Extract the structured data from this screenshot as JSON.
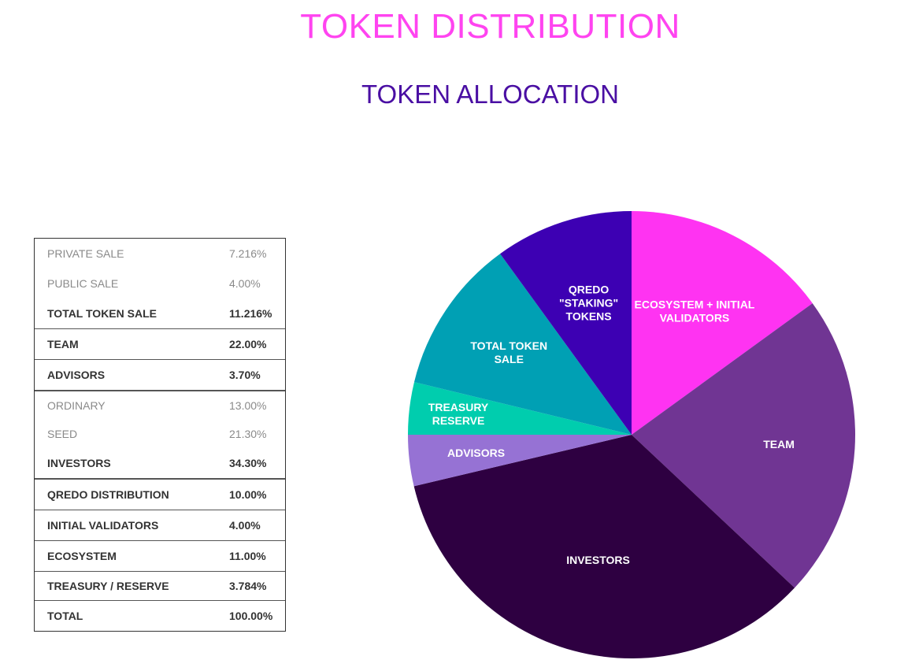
{
  "title": "TOKEN DISTRIBUTION",
  "subtitle": "TOKEN ALLOCATION",
  "colors": {
    "title": "#ff44f0",
    "subtitle": "#4a0fa3"
  },
  "table": {
    "rows": [
      {
        "label": "PRIVATE SALE",
        "value": "7.216%"
      },
      {
        "label": "PUBLIC SALE",
        "value": "4.00%"
      },
      {
        "label": "TOTAL TOKEN SALE",
        "value": "11.216%"
      },
      {
        "label": "TEAM",
        "value": "22.00%"
      },
      {
        "label": "ADVISORS",
        "value": "3.70%"
      },
      {
        "label": "ORDINARY",
        "value": "13.00%"
      },
      {
        "label": "SEED",
        "value": "21.30%"
      },
      {
        "label": "INVESTORS",
        "value": "34.30%"
      },
      {
        "label": "QREDO DISTRIBUTION",
        "value": "10.00%"
      },
      {
        "label": "INITIAL VALIDATORS",
        "value": "4.00%"
      },
      {
        "label": "ECOSYSTEM",
        "value": "11.00%"
      },
      {
        "label": "TREASURY / RESERVE",
        "value": "3.784%"
      },
      {
        "label": "TOTAL",
        "value": "100.00%"
      }
    ]
  },
  "chart_data": {
    "type": "pie",
    "start_angle_deg": 0,
    "direction": "clockwise",
    "slices": [
      {
        "label": [
          "ECOSYSTEM + INITIAL",
          "VALIDATORS"
        ],
        "value": 15.0,
        "color": "#ff33f2"
      },
      {
        "label": [
          "TEAM"
        ],
        "value": 22.0,
        "color": "#703593"
      },
      {
        "label": [
          "INVESTORS"
        ],
        "value": 34.3,
        "color": "#2e0041"
      },
      {
        "label": [
          "ADVISORS"
        ],
        "value": 3.7,
        "color": "#9672d4"
      },
      {
        "label": [
          "TREASURY",
          "RESERVE"
        ],
        "value": 3.784,
        "color": "#00cdae"
      },
      {
        "label": [
          "TOTAL TOKEN",
          "SALE"
        ],
        "value": 11.216,
        "color": "#00a0b4"
      },
      {
        "label": [
          "QREDO",
          "\"STAKING\"",
          "TOKENS"
        ],
        "value": 10.0,
        "color": "#3d00b3"
      }
    ]
  }
}
